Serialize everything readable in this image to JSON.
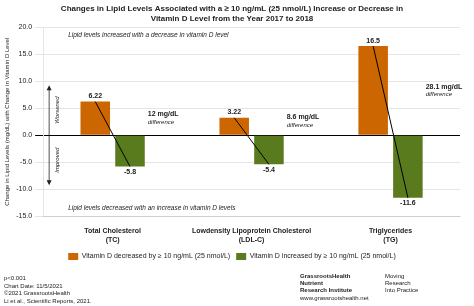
{
  "chart_data": {
    "type": "bar",
    "title": [
      "Changes in Lipid Levels Associated with a ≥ 10 ng/mL (25 nmol/L) Increase or Decrease in",
      "Vitamin D Level from the Year 2017 to 2018"
    ],
    "categories": [
      "Total Cholesterol\n(TC)",
      "Lowdensity Lipoprotein Cholesterol\n(LDL-C)",
      "Triglycerides\n(TG)"
    ],
    "series": [
      {
        "name": "Vitamin D decreased by ≥ 10 ng/mL (25 nmol/L)",
        "color": "#cc6600",
        "values": [
          6.22,
          3.22,
          16.5
        ]
      },
      {
        "name": "Vitamin D increased by ≥ 10 ng/mL (25 nmol/L)",
        "color": "#5a7a1e",
        "values": [
          -5.8,
          -5.4,
          -11.6
        ]
      }
    ],
    "ylabel": "Change in Lipid Levels (mg/dL) with Change in Vitamin D Level",
    "ylim": [
      -15,
      20
    ],
    "yticks": [
      {
        "value": -15,
        "label": "-15.0"
      },
      {
        "value": -10,
        "label": "-10.0"
      },
      {
        "value": -5,
        "label": "-5.0"
      },
      {
        "value": 0,
        "label": "0.0"
      },
      {
        "value": 5,
        "label": "5.0"
      },
      {
        "value": 10,
        "label": "10.0"
      },
      {
        "value": 15,
        "label": "15.0"
      },
      {
        "value": 20,
        "label": "20.0"
      }
    ],
    "grid": true,
    "legend": "bottom",
    "data_labels": true,
    "differences": [
      "12 mg/dL\ndifference",
      "8.6 mg/dL\ndifference",
      "28.1 mg/dL\ndifference"
    ],
    "annotations": [
      "Lipid levels increased with a decrease in vitamin D level",
      "Lipid levels decreased with an increase in vitamin D levels"
    ],
    "direction_labels": [
      "Worsened",
      "Improved"
    ],
    "footer": [
      "p<0.001",
      "Chart Date: 11/5/2021",
      "©2021 GrassrootsHealth",
      "Li et al., Scientific Reports, 2021."
    ],
    "credits": [
      "GrassrootsHealth\nNutrient\nResearch Institute",
      "Moving\nResearch\nInto Practice",
      "www.grassrootshealth.net"
    ]
  }
}
